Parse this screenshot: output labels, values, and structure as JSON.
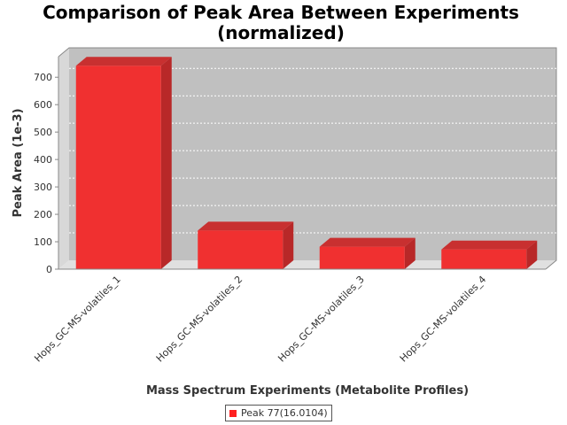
{
  "chart_data": {
    "type": "bar",
    "title_line1": "Comparison of Peak Area Between Experiments",
    "title_line2": "(normalized)",
    "xlabel": "Mass Spectrum Experiments (Metabolite Profiles)",
    "ylabel": "Peak Area (1e-3)",
    "categories": [
      "Hops_GC-MS-volatiles_1",
      "Hops_GC-MS-volatiles_2",
      "Hops_GC-MS-volatiles_3",
      "Hops_GC-MS-volatiles_4"
    ],
    "series": [
      {
        "name": "Peak 77(16.0104)",
        "values": [
          742,
          141,
          82,
          72
        ],
        "color": "#ff2020"
      }
    ],
    "y_ticks": [
      0,
      100,
      200,
      300,
      400,
      500,
      600,
      700
    ],
    "ylim": [
      0,
      775
    ],
    "grid": true,
    "legend_position": "bottom",
    "plot_background": "#c0c0c0"
  }
}
